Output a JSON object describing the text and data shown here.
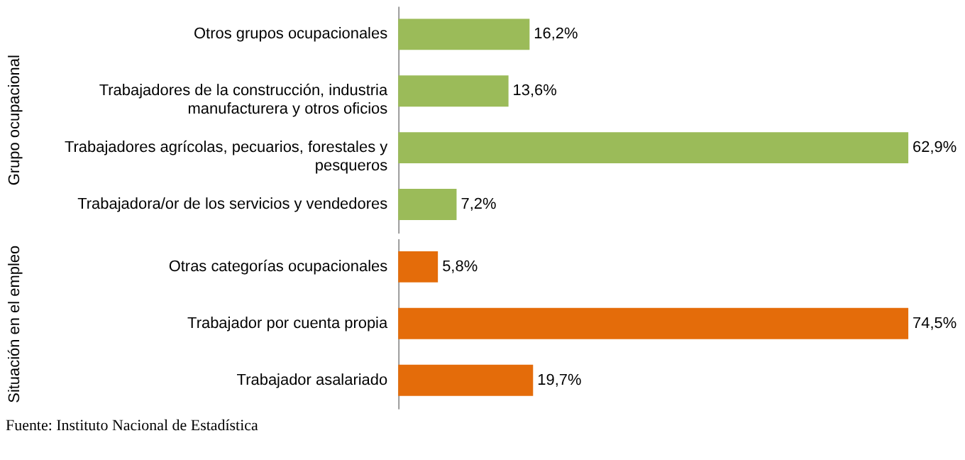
{
  "chart_data": [
    {
      "type": "bar",
      "orientation": "horizontal",
      "ylabel": "Grupo ocupacional",
      "categories": [
        "Otros grupos ocupacionales",
        "Trabajadores de la construcción, industria manufacturera y otros oficios",
        "Trabajadores agrícolas, pecuarios, forestales y pesqueros",
        "Trabajadora/or de los servicios y vendedores"
      ],
      "values": [
        16.2,
        13.6,
        62.9,
        7.2
      ],
      "value_labels": [
        "16,2%",
        "13,6%",
        "62,9%",
        "7,2%"
      ],
      "color": "#9bbb59"
    },
    {
      "type": "bar",
      "orientation": "horizontal",
      "ylabel": "Situación en el empleo",
      "categories": [
        "Otras categorías  ocupacionales",
        "Trabajador por cuenta propia",
        "Trabajador asalariado"
      ],
      "values": [
        5.8,
        74.5,
        19.7
      ],
      "value_labels": [
        "5,8%",
        "74,5%",
        "19,7%"
      ],
      "color": "#e46c0a",
      "annotations": [
        "Fuente: Instituto Nacional de Estadística"
      ]
    }
  ]
}
